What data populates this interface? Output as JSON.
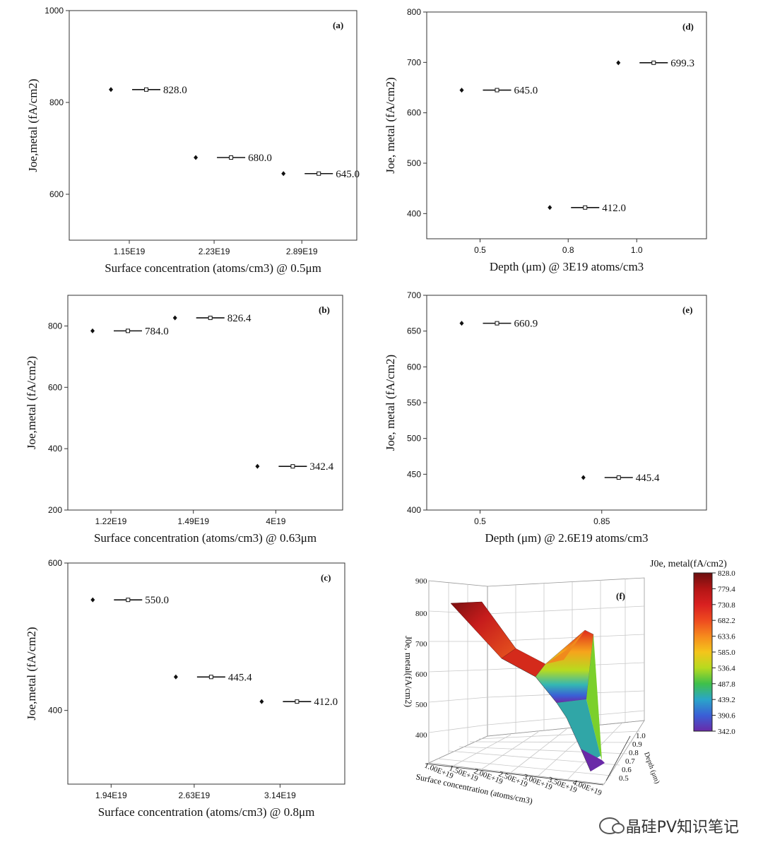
{
  "chart_data": [
    {
      "id": "a",
      "type": "scatter",
      "tag": "(a)",
      "ylabel": "Joe,metal (fA/cm2)",
      "xlabel": "Surface concentration (atoms/cm3) @ 0.5μm",
      "ylim": [
        500,
        1000
      ],
      "yticks": [
        600,
        800,
        1000
      ],
      "categories": [
        "1.15E19",
        "2.23E19",
        "2.89E19"
      ],
      "values": [
        828.0,
        680.0,
        645.0
      ],
      "labels": [
        "828.0",
        "680.0",
        "645.0"
      ]
    },
    {
      "id": "b",
      "type": "scatter",
      "tag": "(b)",
      "ylabel": "Joe,metal (fA/cm2)",
      "xlabel": "Surface concentration (atoms/cm3) @ 0.63μm",
      "ylim": [
        200,
        900
      ],
      "yticks": [
        200,
        400,
        600,
        800
      ],
      "categories": [
        "1.22E19",
        "1.49E19",
        "4E19"
      ],
      "values": [
        784.0,
        826.4,
        342.4
      ],
      "labels": [
        "784.0",
        "826.4",
        "342.4"
      ]
    },
    {
      "id": "c",
      "type": "scatter",
      "tag": "(c)",
      "ylabel": "Joe,metal (fA/cm2)",
      "xlabel": "Surface concentration (atoms/cm3) @ 0.8μm",
      "ylim": [
        300,
        600
      ],
      "yticks": [
        400,
        600
      ],
      "categories": [
        "1.94E19",
        "2.63E19",
        "3.14E19"
      ],
      "values": [
        550.0,
        445.4,
        412.0
      ],
      "labels": [
        "550.0",
        "445.4",
        "412.0"
      ]
    },
    {
      "id": "d",
      "type": "scatter",
      "tag": "(d)",
      "ylabel": "Joe, metal (fA/cm2)",
      "xlabel": "Depth (μm) @ 3E19 atoms/cm3",
      "ylim": [
        350,
        800
      ],
      "yticks": [
        400,
        500,
        600,
        700,
        800
      ],
      "categories": [
        "0.5",
        "0.8",
        "1.0"
      ],
      "values": [
        645.0,
        412.0,
        699.3
      ],
      "labels": [
        "645.0",
        "412.0",
        "699.3"
      ]
    },
    {
      "id": "e",
      "type": "scatter",
      "tag": "(e)",
      "ylabel": "Joe, metal (fA/cm2)",
      "xlabel": "Depth (μm) @ 2.6E19 atoms/cm3",
      "ylim": [
        400,
        700
      ],
      "yticks": [
        400,
        450,
        500,
        550,
        600,
        650,
        700
      ],
      "categories": [
        "0.5",
        "0.85"
      ],
      "values": [
        660.9,
        445.4
      ],
      "labels": [
        "660.9",
        "445.4"
      ]
    },
    {
      "id": "f",
      "type": "heatmap",
      "tag": "(f)",
      "zlabel": "J0e, metal(fA/cm2)",
      "ylabel": "Depth (μm)",
      "xlabel": "Surface concentration (atoms/cm3)",
      "ztick_labels": [
        "400",
        "500",
        "600",
        "700",
        "800",
        "900"
      ],
      "x_tick_labels": [
        "1.00E+19",
        "1.50E+19",
        "2.00E+19",
        "2.50E+19",
        "3.00E+19",
        "3.50E+19",
        "4.00E+19"
      ],
      "y_tick_labels": [
        "0.5",
        "0.6",
        "0.7",
        "0.8",
        "0.9",
        "1.0"
      ],
      "colorbar_labels": [
        "828.0",
        "779.4",
        "730.8",
        "682.2",
        "633.6",
        "585.0",
        "536.4",
        "487.8",
        "439.2",
        "390.6",
        "342.0"
      ],
      "colorbar_colors": [
        "#6b0f0f",
        "#b31515",
        "#d92020",
        "#ee4a1f",
        "#f68a1d",
        "#f4c51b",
        "#b7da1f",
        "#3fc04a",
        "#2aa5c9",
        "#3a5fd6",
        "#6a2aa8"
      ]
    }
  ],
  "watermark": {
    "text": "晶硅PV知识笔记"
  }
}
